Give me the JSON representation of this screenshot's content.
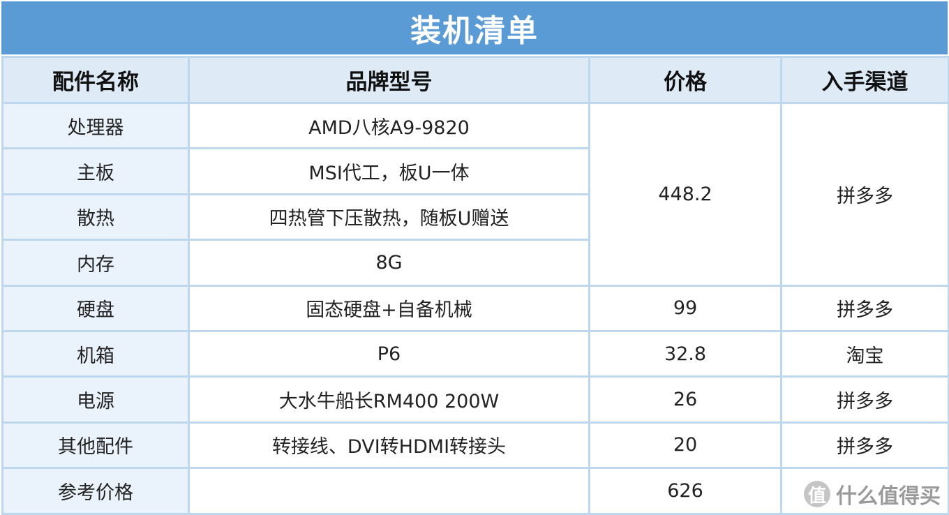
{
  "title": "装机清单",
  "headers": {
    "name": "配件名称",
    "model": "品牌型号",
    "price": "价格",
    "channel": "入手渠道"
  },
  "rows": [
    {
      "name": "处理器",
      "model": "AMD八核A9-9820"
    },
    {
      "name": "主板",
      "model": "MSI代工，板U一体"
    },
    {
      "name": "散热",
      "model": "四热管下压散热，随板U赠送"
    },
    {
      "name": "内存",
      "model": "8G"
    },
    {
      "name": "硬盘",
      "model": "固态硬盘+自备机械",
      "price": "99",
      "channel": "拼多多"
    },
    {
      "name": "机箱",
      "model": "P6",
      "price": "32.8",
      "channel": "淘宝"
    },
    {
      "name": "电源",
      "model": "大水牛船长RM400 200W",
      "price": "26",
      "channel": "拼多多"
    },
    {
      "name": "其他配件",
      "model": "转接线、DVI转HDMI转接头",
      "price": "20",
      "channel": "拼多多"
    },
    {
      "name": "参考价格",
      "model": "",
      "price": "626",
      "channel": ""
    }
  ],
  "merged": {
    "price": "448.2",
    "channel": "拼多多"
  },
  "watermark": {
    "logo_char": "值",
    "text": "什么值得买"
  }
}
